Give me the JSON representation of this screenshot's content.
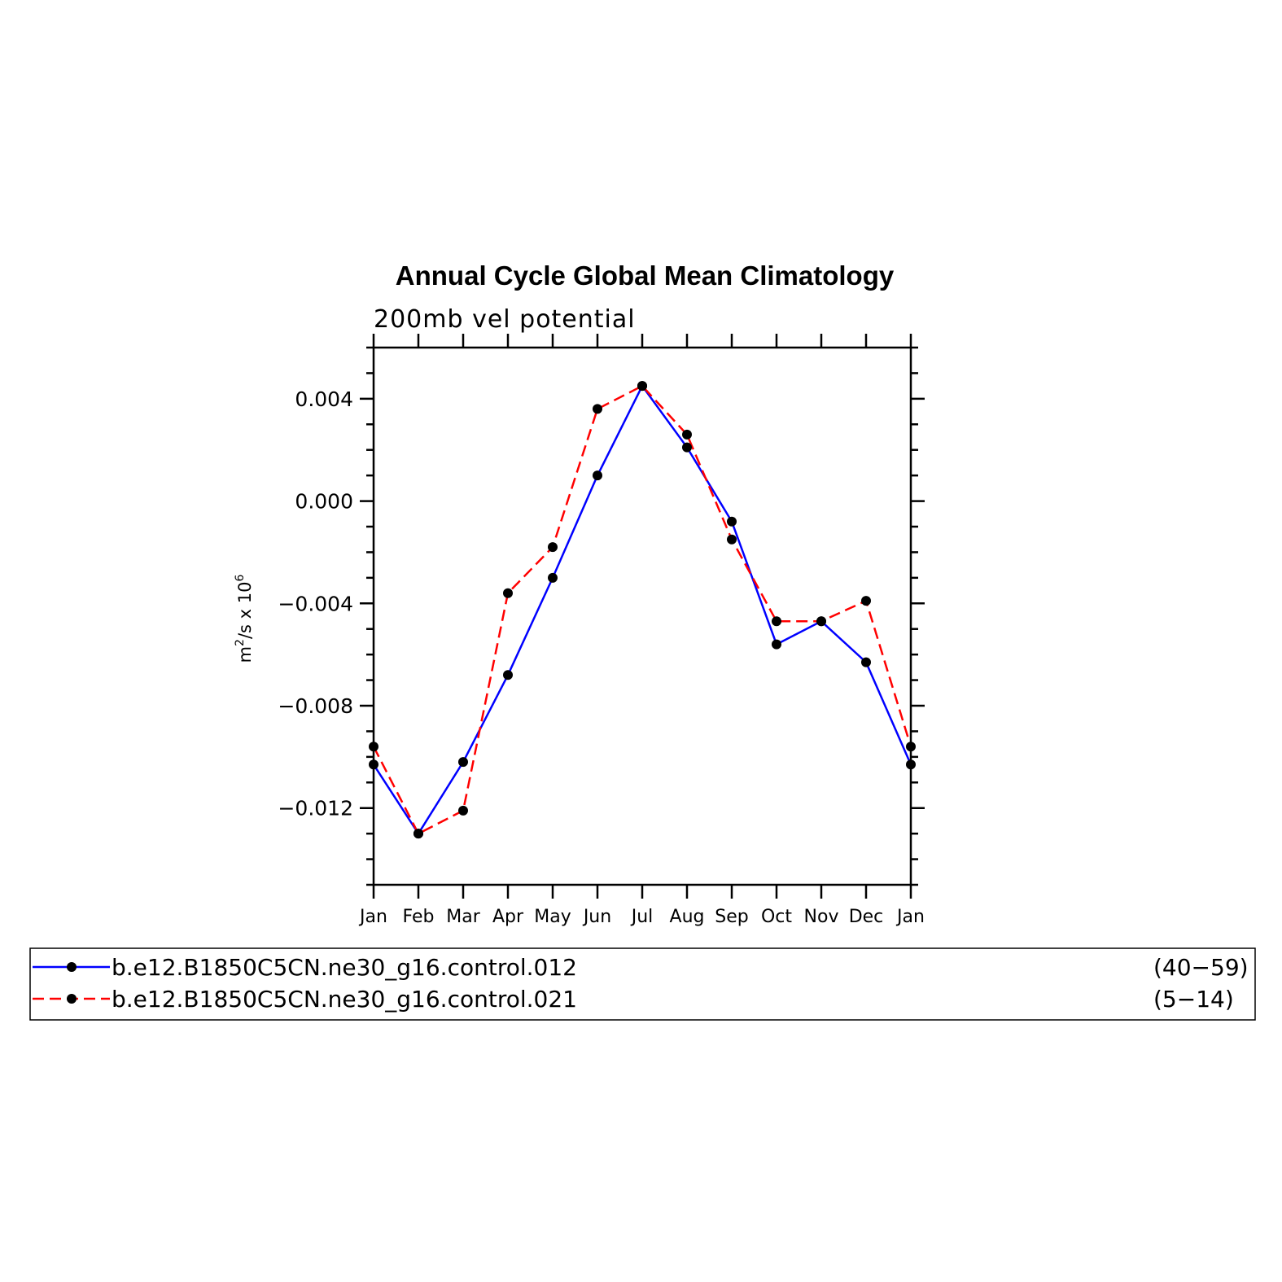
{
  "chart_data": {
    "type": "line",
    "title": "Annual Cycle Global Mean Climatology",
    "subtitle": "200mb vel potential",
    "ylabel": {
      "base": "m",
      "exp1": "2",
      "mid": "/s x 10",
      "exp2": "6"
    },
    "xlabel": "",
    "categories": [
      "Jan",
      "Feb",
      "Mar",
      "Apr",
      "May",
      "Jun",
      "Jul",
      "Aug",
      "Sep",
      "Oct",
      "Nov",
      "Dec",
      "Jan"
    ],
    "ylim": [
      -0.015,
      0.006
    ],
    "yticks": [
      {
        "value": 0.004,
        "label": "0.004"
      },
      {
        "value": 0.0,
        "label": "0.000"
      },
      {
        "value": -0.004,
        "label": "−0.004"
      },
      {
        "value": -0.008,
        "label": "−0.008"
      },
      {
        "value": -0.012,
        "label": "−0.012"
      }
    ],
    "grid": false,
    "legend_position": "bottom",
    "series": [
      {
        "name": "b.e12.B1850C5CN.ne30_g16.control.012",
        "years": "(40−59)",
        "color": "#0000ff",
        "dash": "solid",
        "values": [
          -0.0103,
          -0.013,
          -0.0102,
          -0.0068,
          -0.003,
          0.001,
          0.0045,
          0.0021,
          -0.0008,
          -0.0056,
          -0.0047,
          -0.0063,
          -0.0103
        ]
      },
      {
        "name": "b.e12.B1850C5CN.ne30_g16.control.021",
        "years": "(5−14)",
        "color": "#ff0000",
        "dash": "dashed",
        "values": [
          -0.0096,
          -0.013,
          -0.0121,
          -0.0036,
          -0.0018,
          0.0036,
          0.0045,
          0.0026,
          -0.0015,
          -0.0047,
          -0.0047,
          -0.0039,
          -0.0096
        ]
      }
    ]
  }
}
